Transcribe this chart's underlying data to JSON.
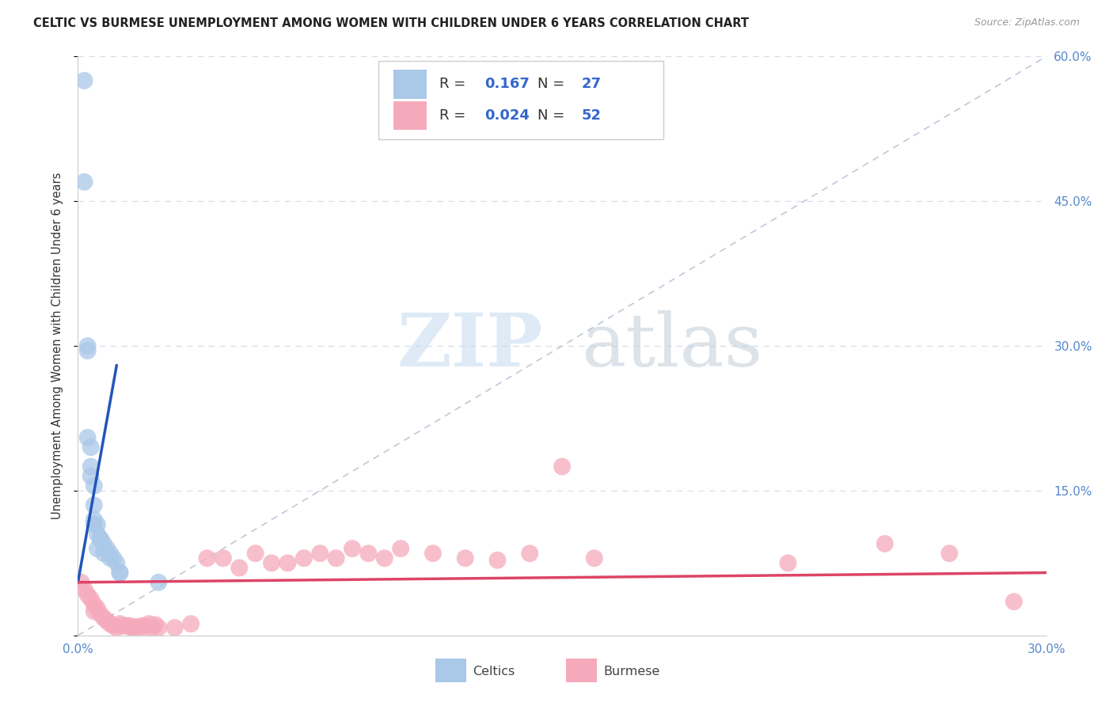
{
  "title": "CELTIC VS BURMESE UNEMPLOYMENT AMONG WOMEN WITH CHILDREN UNDER 6 YEARS CORRELATION CHART",
  "source": "Source: ZipAtlas.com",
  "ylabel": "Unemployment Among Women with Children Under 6 years",
  "xlim": [
    0.0,
    0.3
  ],
  "ylim": [
    0.0,
    0.6
  ],
  "xtick_positions": [
    0.0,
    0.05,
    0.1,
    0.15,
    0.2,
    0.25,
    0.3
  ],
  "ytick_positions": [
    0.0,
    0.15,
    0.3,
    0.45,
    0.6
  ],
  "ytick_labels_right": [
    "",
    "15.0%",
    "30.0%",
    "45.0%",
    "60.0%"
  ],
  "xtick_labels": [
    "0.0%",
    "",
    "",
    "",
    "",
    "",
    "30.0%"
  ],
  "celtic_color": "#aac8e8",
  "burmese_color": "#f5aabb",
  "celtic_line_color": "#2255bb",
  "burmese_line_color": "#dd4466",
  "diag_line_color": "#c0c8d8",
  "background_color": "#ffffff",
  "grid_color": "#d8dde8",
  "legend_R_celtic": "0.167",
  "legend_N_celtic": "27",
  "legend_R_burmese": "0.024",
  "legend_N_burmese": "52",
  "watermark_zip": "ZIP",
  "watermark_atlas": "atlas",
  "celtic_x": [
    0.002,
    0.002,
    0.003,
    0.003,
    0.003,
    0.004,
    0.004,
    0.004,
    0.005,
    0.005,
    0.005,
    0.005,
    0.006,
    0.006,
    0.006,
    0.007,
    0.007,
    0.008,
    0.008,
    0.009,
    0.01,
    0.01,
    0.011,
    0.012,
    0.013,
    0.013,
    0.025
  ],
  "celtic_y": [
    0.575,
    0.47,
    0.295,
    0.3,
    0.205,
    0.195,
    0.175,
    0.165,
    0.155,
    0.135,
    0.12,
    0.115,
    0.115,
    0.105,
    0.09,
    0.1,
    0.1,
    0.095,
    0.085,
    0.09,
    0.085,
    0.08,
    0.08,
    0.075,
    0.065,
    0.065,
    0.055
  ],
  "burmese_x": [
    0.001,
    0.002,
    0.003,
    0.004,
    0.005,
    0.005,
    0.006,
    0.007,
    0.008,
    0.009,
    0.01,
    0.011,
    0.012,
    0.013,
    0.014,
    0.015,
    0.016,
    0.016,
    0.017,
    0.018,
    0.019,
    0.02,
    0.021,
    0.022,
    0.023,
    0.024,
    0.025,
    0.03,
    0.035,
    0.04,
    0.045,
    0.05,
    0.055,
    0.06,
    0.065,
    0.07,
    0.075,
    0.08,
    0.085,
    0.09,
    0.095,
    0.1,
    0.11,
    0.12,
    0.13,
    0.14,
    0.15,
    0.16,
    0.22,
    0.25,
    0.27,
    0.29
  ],
  "burmese_y": [
    0.055,
    0.048,
    0.042,
    0.038,
    0.032,
    0.025,
    0.028,
    0.022,
    0.018,
    0.015,
    0.012,
    0.01,
    0.008,
    0.012,
    0.01,
    0.01,
    0.01,
    0.009,
    0.008,
    0.009,
    0.008,
    0.01,
    0.009,
    0.012,
    0.008,
    0.011,
    0.008,
    0.008,
    0.012,
    0.08,
    0.08,
    0.07,
    0.085,
    0.075,
    0.075,
    0.08,
    0.085,
    0.08,
    0.09,
    0.085,
    0.08,
    0.09,
    0.085,
    0.08,
    0.078,
    0.085,
    0.175,
    0.08,
    0.075,
    0.095,
    0.085,
    0.035
  ],
  "celtic_trend_x": [
    0.0,
    0.012
  ],
  "celtic_trend_y": [
    0.055,
    0.28
  ],
  "burmese_trend_x": [
    0.0,
    0.3
  ],
  "burmese_trend_y": [
    0.055,
    0.065
  ]
}
